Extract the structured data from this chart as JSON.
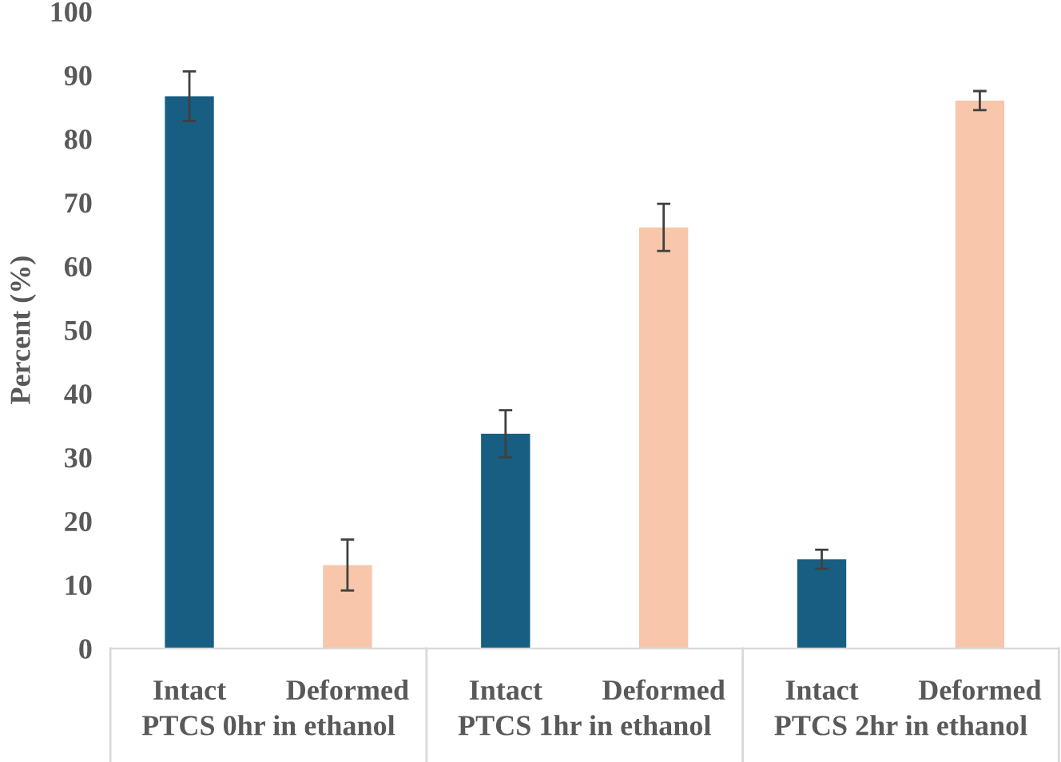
{
  "chart_data": {
    "type": "bar",
    "ylabel": "Percent (%)",
    "categories": [
      "Intact",
      "Deformed",
      "Intact",
      "Deformed",
      "Intact",
      "Deformed"
    ],
    "values": [
      86.7,
      13.1,
      33.7,
      66.1,
      14.0,
      86.0
    ],
    "errors": [
      3.9,
      4.0,
      3.7,
      3.7,
      1.5,
      1.5
    ],
    "colors": [
      "#175e82",
      "#f7c6ab",
      "#175e82",
      "#f7c6ab",
      "#175e82",
      "#f7c6ab"
    ],
    "annotations": [
      "PTCS 0hr in ethanol",
      "PTCS 1hr in ethanol",
      "PTCS 2hr in ethanol"
    ],
    "ylim": [
      0,
      100
    ],
    "yticks": [
      0,
      10,
      20,
      30,
      40,
      50,
      60,
      70,
      80,
      90,
      100
    ],
    "grid": false,
    "legend": false
  }
}
